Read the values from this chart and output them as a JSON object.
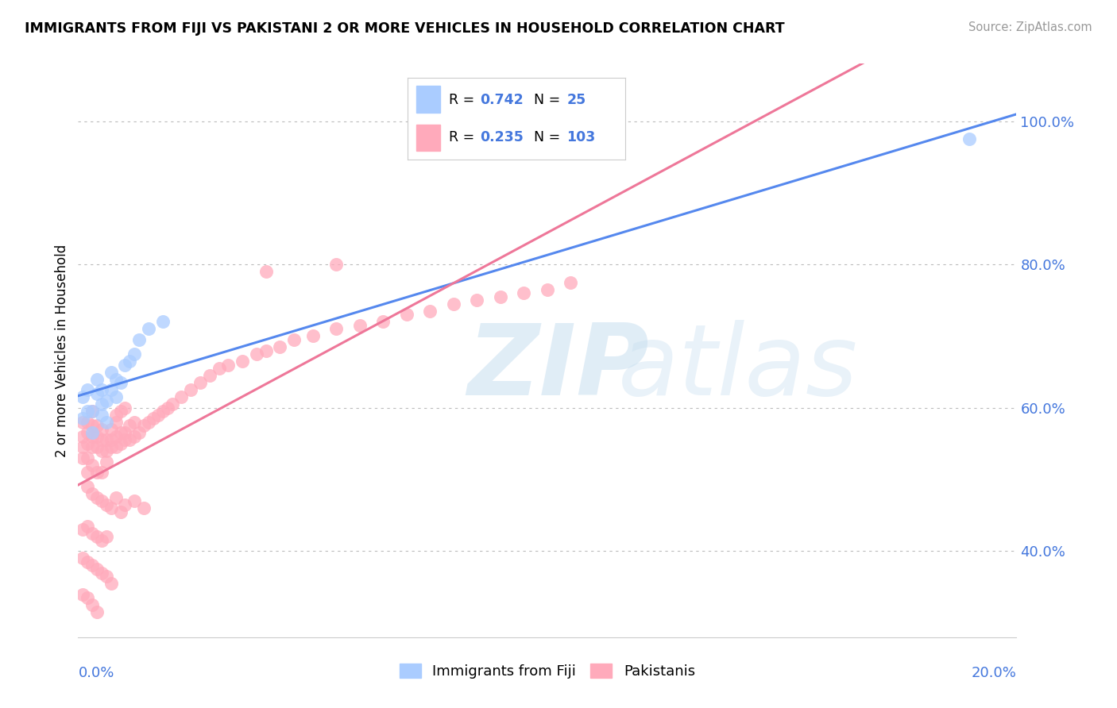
{
  "title": "IMMIGRANTS FROM FIJI VS PAKISTANI 2 OR MORE VEHICLES IN HOUSEHOLD CORRELATION CHART",
  "source": "Source: ZipAtlas.com",
  "ylabel": "2 or more Vehicles in Household",
  "ylabel_ticks": [
    "40.0%",
    "60.0%",
    "80.0%",
    "100.0%"
  ],
  "ylabel_tick_vals": [
    0.4,
    0.6,
    0.8,
    1.0
  ],
  "xlim": [
    0.0,
    0.2
  ],
  "ylim": [
    0.28,
    1.08
  ],
  "color_fiji": "#aaccff",
  "color_pak": "#ffaabb",
  "color_fiji_line": "#5588ee",
  "color_pak_line": "#ee7799",
  "color_text_blue": "#4477dd",
  "watermark_zip": "ZIP",
  "watermark_atlas": "atlas",
  "legend_items": [
    {
      "color": "#aaccff",
      "R": "0.742",
      "N": "25"
    },
    {
      "color": "#ffaabb",
      "R": "0.235",
      "N": "103"
    }
  ],
  "fiji_x": [
    0.001,
    0.001,
    0.002,
    0.002,
    0.003,
    0.003,
    0.004,
    0.004,
    0.005,
    0.005,
    0.005,
    0.006,
    0.006,
    0.007,
    0.007,
    0.008,
    0.008,
    0.009,
    0.01,
    0.011,
    0.012,
    0.013,
    0.015,
    0.018,
    0.19
  ],
  "fiji_y": [
    0.585,
    0.615,
    0.595,
    0.625,
    0.565,
    0.595,
    0.62,
    0.64,
    0.59,
    0.605,
    0.625,
    0.58,
    0.61,
    0.625,
    0.65,
    0.615,
    0.64,
    0.635,
    0.66,
    0.665,
    0.675,
    0.695,
    0.71,
    0.72,
    0.975
  ],
  "pak_x": [
    0.001,
    0.001,
    0.001,
    0.001,
    0.002,
    0.002,
    0.002,
    0.002,
    0.002,
    0.003,
    0.003,
    0.003,
    0.003,
    0.003,
    0.004,
    0.004,
    0.004,
    0.004,
    0.005,
    0.005,
    0.005,
    0.005,
    0.006,
    0.006,
    0.006,
    0.007,
    0.007,
    0.007,
    0.008,
    0.008,
    0.008,
    0.009,
    0.009,
    0.01,
    0.01,
    0.011,
    0.011,
    0.012,
    0.012,
    0.013,
    0.014,
    0.015,
    0.016,
    0.017,
    0.018,
    0.019,
    0.02,
    0.022,
    0.024,
    0.026,
    0.028,
    0.03,
    0.032,
    0.035,
    0.038,
    0.04,
    0.043,
    0.046,
    0.05,
    0.055,
    0.06,
    0.065,
    0.07,
    0.075,
    0.08,
    0.085,
    0.09,
    0.095,
    0.1,
    0.105,
    0.002,
    0.003,
    0.004,
    0.005,
    0.006,
    0.007,
    0.008,
    0.009,
    0.01,
    0.012,
    0.014,
    0.001,
    0.002,
    0.003,
    0.004,
    0.005,
    0.006,
    0.001,
    0.002,
    0.003,
    0.004,
    0.005,
    0.006,
    0.007,
    0.001,
    0.002,
    0.003,
    0.004,
    0.04,
    0.055,
    0.008,
    0.009,
    0.01
  ],
  "pak_y": [
    0.545,
    0.56,
    0.58,
    0.53,
    0.55,
    0.565,
    0.58,
    0.53,
    0.51,
    0.545,
    0.56,
    0.575,
    0.595,
    0.52,
    0.545,
    0.56,
    0.575,
    0.51,
    0.54,
    0.555,
    0.57,
    0.51,
    0.54,
    0.555,
    0.525,
    0.545,
    0.555,
    0.57,
    0.545,
    0.56,
    0.58,
    0.55,
    0.565,
    0.555,
    0.565,
    0.555,
    0.575,
    0.56,
    0.58,
    0.565,
    0.575,
    0.58,
    0.585,
    0.59,
    0.595,
    0.6,
    0.605,
    0.615,
    0.625,
    0.635,
    0.645,
    0.655,
    0.66,
    0.665,
    0.675,
    0.68,
    0.685,
    0.695,
    0.7,
    0.71,
    0.715,
    0.72,
    0.73,
    0.735,
    0.745,
    0.75,
    0.755,
    0.76,
    0.765,
    0.775,
    0.49,
    0.48,
    0.475,
    0.47,
    0.465,
    0.46,
    0.475,
    0.455,
    0.465,
    0.47,
    0.46,
    0.43,
    0.435,
    0.425,
    0.42,
    0.415,
    0.42,
    0.39,
    0.385,
    0.38,
    0.375,
    0.37,
    0.365,
    0.355,
    0.34,
    0.335,
    0.325,
    0.315,
    0.79,
    0.8,
    0.59,
    0.595,
    0.6
  ]
}
